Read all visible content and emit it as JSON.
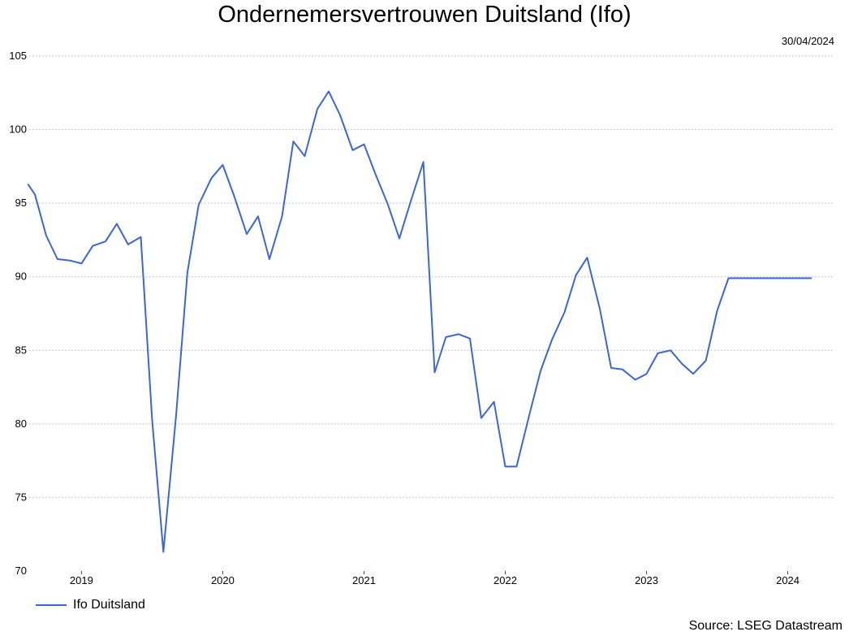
{
  "chart_data": {
    "type": "line",
    "title": "Ondernemersvertrouwen Duitsland (Ifo)",
    "date_label": "30/04/2024",
    "source": "Source: LSEG Datastream",
    "ylim": [
      70,
      105
    ],
    "yticks": [
      70,
      75,
      80,
      85,
      90,
      95,
      100,
      105
    ],
    "xlim": [
      2018.63,
      2024.33
    ],
    "xticks": [
      {
        "value": 2019,
        "label": "2019"
      },
      {
        "value": 2020,
        "label": "2020"
      },
      {
        "value": 2021,
        "label": "2021"
      },
      {
        "value": 2022,
        "label": "2022"
      },
      {
        "value": 2023,
        "label": "2023"
      },
      {
        "value": 2024,
        "label": "2024"
      }
    ],
    "grid": true,
    "legend_position": "bottom-left",
    "series": [
      {
        "name": "Ifo Duitsland",
        "color": "#3a66d6",
        "x": [
          2018.62,
          2018.67,
          2018.75,
          2018.83,
          2018.92,
          2019.0,
          2019.08,
          2019.17,
          2019.25,
          2019.33,
          2019.42,
          2019.5,
          2019.58,
          2019.67,
          2019.75,
          2019.83,
          2019.92,
          2020.0,
          2020.08,
          2020.17,
          2020.25,
          2020.33,
          2020.42,
          2020.5,
          2020.58,
          2020.67,
          2020.75,
          2020.83,
          2020.92,
          2021.0,
          2021.08,
          2021.17,
          2021.25,
          2021.33,
          2021.42,
          2021.5,
          2021.58,
          2021.67,
          2021.75,
          2021.83,
          2021.92,
          2022.0,
          2022.08,
          2022.17,
          2022.25,
          2022.33,
          2022.42,
          2022.5,
          2022.58,
          2022.67,
          2022.75,
          2022.83,
          2022.92,
          2023.0,
          2023.08,
          2023.17,
          2023.25,
          2023.33,
          2023.42,
          2023.5,
          2023.58,
          2023.67,
          2023.75,
          2023.83,
          2023.92,
          2024.0,
          2024.08,
          2024.17,
          2024.25,
          2024.33
        ],
        "values": [
          96.3,
          95.6,
          92.8,
          91.2,
          91.1,
          90.9,
          92.1,
          92.4,
          93.6,
          92.2,
          92.7,
          80.3,
          71.3,
          80.6,
          90.3,
          94.9,
          96.7,
          97.6,
          95.5,
          92.9,
          94.1,
          91.2,
          94.1,
          99.2,
          98.2,
          101.4,
          102.6,
          101.0,
          98.6,
          99.0,
          97.0,
          94.9,
          92.6,
          95.1,
          97.8,
          83.5,
          85.9,
          86.1,
          85.8,
          80.4,
          81.5,
          77.1,
          77.1,
          80.6,
          83.6,
          85.7,
          87.6,
          90.1,
          91.3,
          87.8,
          83.8,
          83.7,
          83.0,
          83.4,
          84.8,
          85.0,
          84.1,
          83.4,
          84.3,
          87.7,
          89.9,
          89.9,
          89.9,
          89.9,
          89.9,
          89.9,
          89.9,
          89.9,
          89.9,
          89.9
        ]
      }
    ]
  }
}
